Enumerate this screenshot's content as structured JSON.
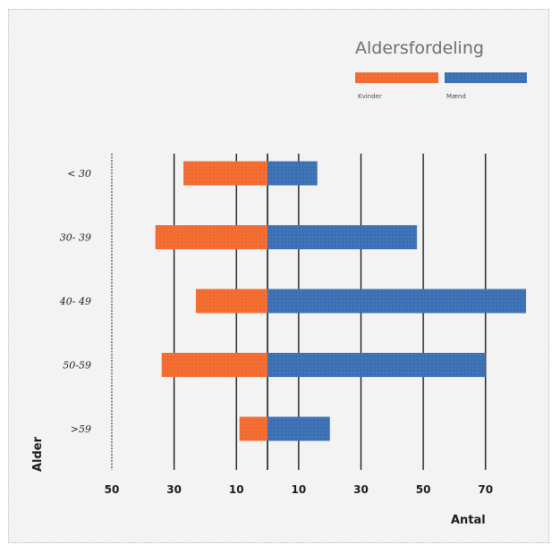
{
  "chart_data": {
    "type": "bar",
    "orientation": "horizontal",
    "layout": "population-pyramid",
    "title": "Aldersfordeling",
    "xlabel": "Antal",
    "ylabel": "Alder",
    "categories": [
      "< 30",
      "30- 39",
      "40- 49",
      "50-59",
      ">59"
    ],
    "series": [
      {
        "name": "Kvinder",
        "color": "#f26a2e",
        "values": [
          27,
          36,
          23,
          34,
          9
        ]
      },
      {
        "name": "Mænd",
        "color": "#3b6fb4",
        "values": [
          16,
          48,
          83,
          70,
          20
        ]
      }
    ],
    "xlim": [
      -50,
      83
    ],
    "x_ticks": [
      {
        "value": -50,
        "label": "50"
      },
      {
        "value": -30,
        "label": "30"
      },
      {
        "value": -10,
        "label": "10"
      },
      {
        "value": 10,
        "label": "10"
      },
      {
        "value": 30,
        "label": "30"
      },
      {
        "value": 50,
        "label": "50"
      },
      {
        "value": 70,
        "label": "70"
      }
    ],
    "grid": true,
    "legend_position": "top-right"
  }
}
